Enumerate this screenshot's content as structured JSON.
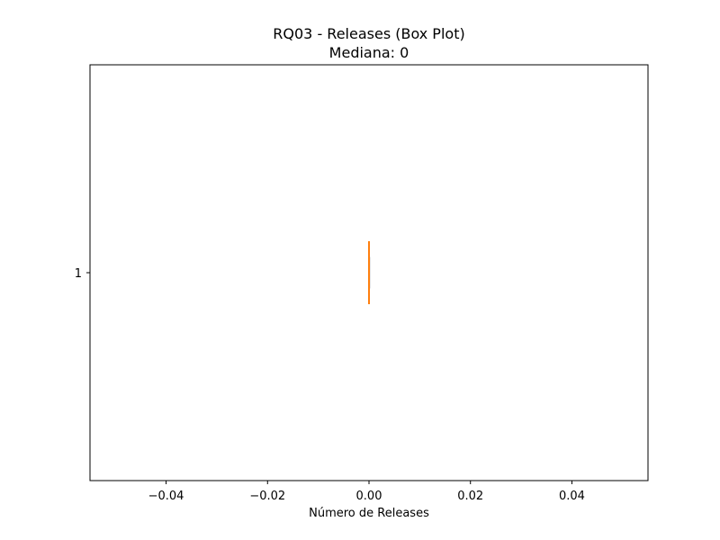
{
  "chart_data": {
    "type": "box",
    "orientation": "horizontal",
    "title": "RQ03 - Releases (Box Plot)",
    "subtitle": "Mediana: 0",
    "xlabel": "Número de Releases",
    "ylabel": "",
    "xlim": [
      -0.055,
      0.055
    ],
    "x_ticks": [
      -0.04,
      -0.02,
      0.0,
      0.02,
      0.04
    ],
    "x_tick_labels": [
      "−0.04",
      "−0.02",
      "0.00",
      "0.02",
      "0.04"
    ],
    "y_ticks": [
      "1"
    ],
    "grid": false,
    "series": [
      {
        "name": "1",
        "min": 0,
        "q1": 0,
        "median": 0,
        "q3": 0,
        "max": 0,
        "outliers": []
      }
    ],
    "colors": {
      "box": "#000000",
      "median": "#ff7f0e",
      "axes": "#000000",
      "background": "#ffffff"
    }
  }
}
